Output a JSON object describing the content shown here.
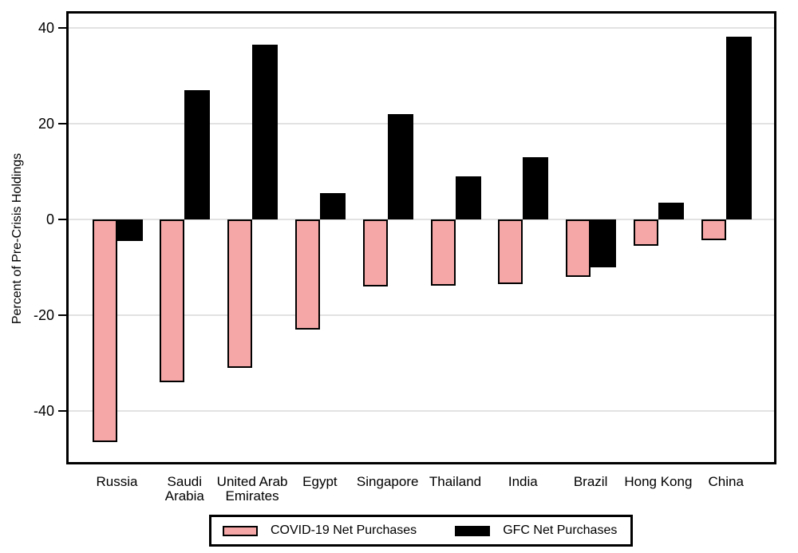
{
  "chart_data": {
    "type": "bar",
    "title": "",
    "xlabel": "",
    "ylabel": "Percent of Pre-Crisis Holdings",
    "categories": [
      "Russia",
      "Saudi Arabia",
      "United Arab Emirates",
      "Egypt",
      "Singapore",
      "Thailand",
      "India",
      "Brazil",
      "Hong Kong",
      "China"
    ],
    "category_label_lines": [
      [
        "Russia"
      ],
      [
        "Saudi",
        "Arabia"
      ],
      [
        "United Arab",
        "Emirates"
      ],
      [
        "Egypt"
      ],
      [
        "Singapore"
      ],
      [
        "Thailand"
      ],
      [
        "India"
      ],
      [
        "Brazil"
      ],
      [
        "Hong Kong"
      ],
      [
        "China"
      ]
    ],
    "series": [
      {
        "name": "COVID-19 Net Purchases",
        "color": "#f5a6a6",
        "values": [
          -46.5,
          -34,
          -31,
          -23,
          -14,
          -13.8,
          -13.5,
          -12,
          -5.5,
          -4.3
        ]
      },
      {
        "name": "GFC Net Purchases",
        "color": "#000000",
        "values": [
          -4.5,
          27,
          36.5,
          5.5,
          22,
          9,
          13,
          -10,
          3.5,
          38.2
        ]
      }
    ],
    "yticks": [
      -40,
      -20,
      0,
      20,
      40
    ],
    "ylim": [
      -50.6,
      43
    ],
    "grid": true,
    "legend_position": "bottom"
  },
  "colors": {
    "covid_bar_fill": "#f5a6a6",
    "gfc_bar_fill": "#000000",
    "bar_outline": "#000000",
    "gridline": "#e2e2e2",
    "axis": "#000000",
    "background": "#ffffff"
  }
}
